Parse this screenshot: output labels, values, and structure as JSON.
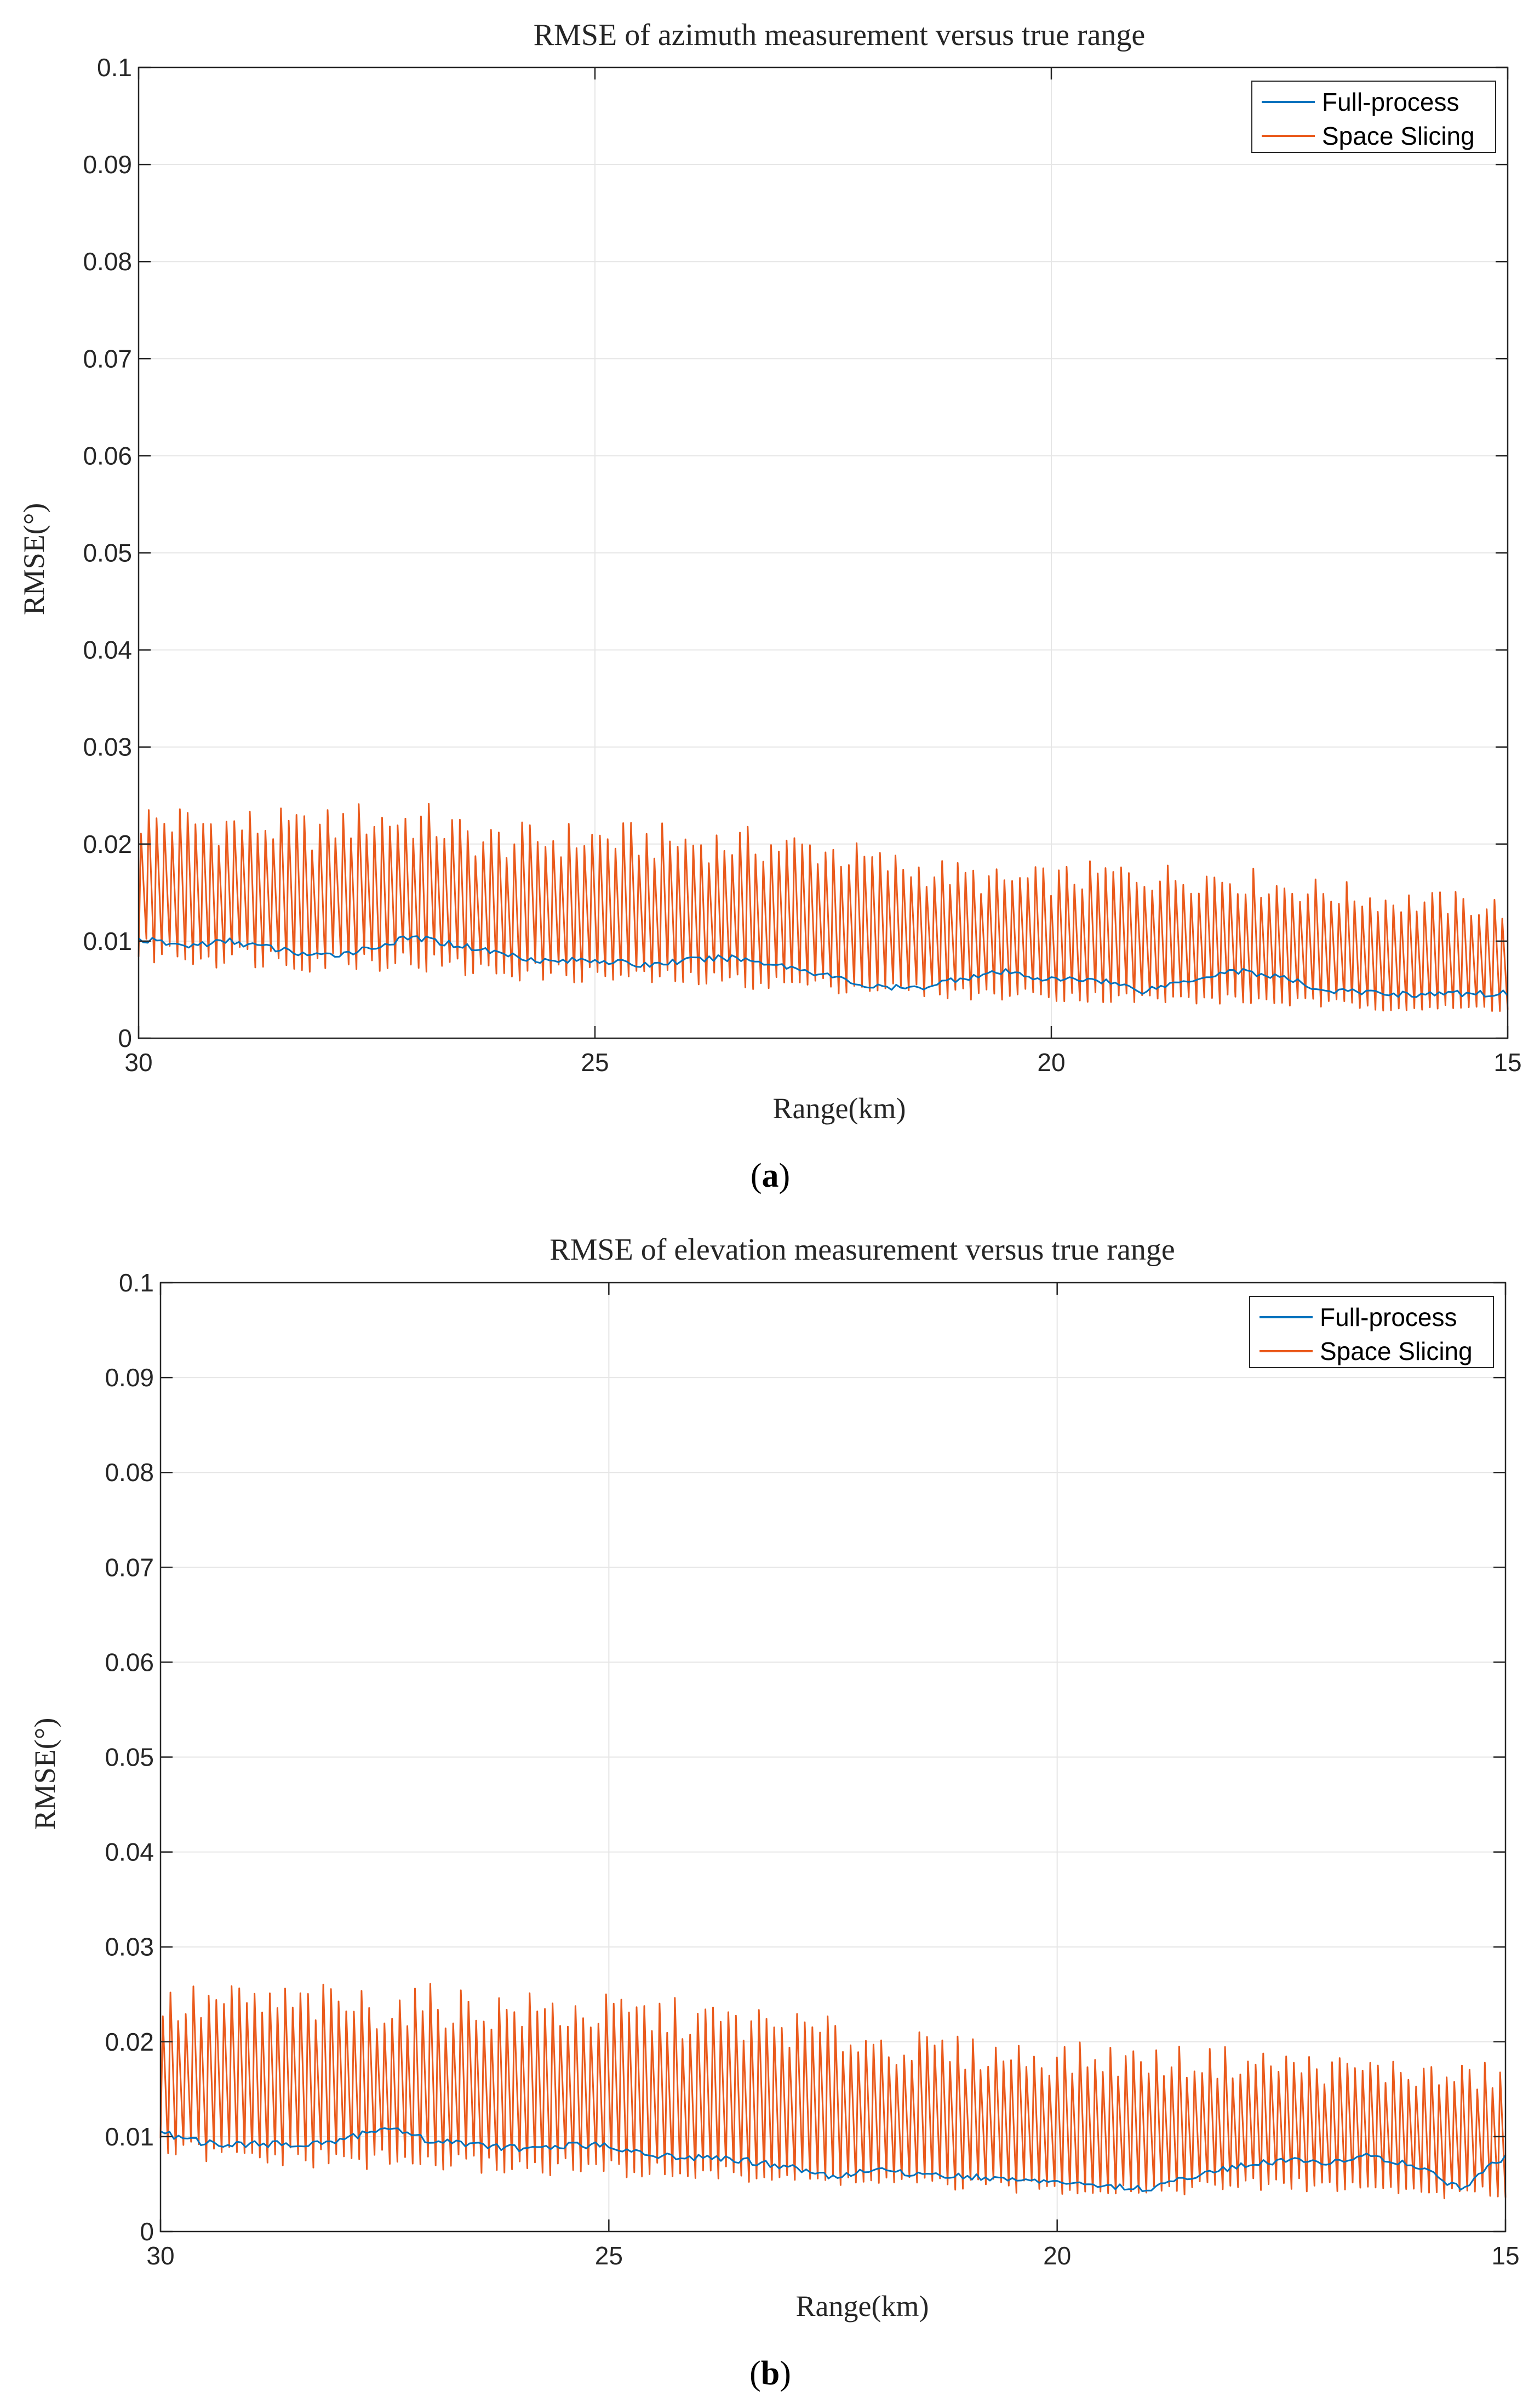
{
  "colors": {
    "full_process": "#0072bd",
    "space_slicing": "#ea5a1c",
    "grid": "#e6e6e6",
    "axis": "#262626"
  },
  "chart_data": [
    {
      "type": "line",
      "title": "RMSE of azimuth measurement versus true range",
      "xlabel": "Range(km)",
      "ylabel": "RMSE(°)",
      "xlim": [
        30,
        15
      ],
      "x_reversed": true,
      "ylim": [
        0,
        0.1
      ],
      "xticks": [
        "30",
        "25",
        "20",
        "15"
      ],
      "yticks": [
        "0",
        "0.01",
        "0.02",
        "0.03",
        "0.04",
        "0.05",
        "0.06",
        "0.07",
        "0.08",
        "0.09",
        "0.1"
      ],
      "grid": true,
      "legend": "top-right",
      "caption_letter": "a",
      "series": [
        {
          "name": "Full-process",
          "color": "#0072bd",
          "x": [
            30,
            29.5,
            29,
            28.5,
            28,
            27.5,
            27,
            26.5,
            26,
            25.5,
            25,
            24.5,
            24,
            23.5,
            23,
            22.5,
            22,
            21.5,
            21,
            20.5,
            20,
            19.5,
            19,
            18.5,
            18,
            17.5,
            17,
            16.5,
            16,
            15.5,
            15
          ],
          "values": [
            0.0102,
            0.0095,
            0.01,
            0.0092,
            0.0084,
            0.0092,
            0.0104,
            0.0096,
            0.0087,
            0.0079,
            0.0081,
            0.0075,
            0.008,
            0.0083,
            0.0076,
            0.0066,
            0.0053,
            0.0051,
            0.0062,
            0.0068,
            0.006,
            0.0061,
            0.0049,
            0.006,
            0.007,
            0.0063,
            0.0049,
            0.0047,
            0.0045,
            0.0046,
            0.0046
          ]
        },
        {
          "name": "Space Slicing",
          "color": "#ea5a1c",
          "x_start": 30,
          "x_end": 15,
          "cycles": 176,
          "peaks": [
            0.0225,
            0.022,
            0.0218,
            0.0213,
            0.0225,
            0.0222,
            0.0202,
            0.0203,
            0.0205,
            0.0202,
            0.02,
            0.0198,
            0.0193,
            0.0178,
            0.017,
            0.016,
            0.0162,
            0.0168,
            0.0165,
            0.0165,
            0.0155,
            0.0148,
            0.014,
            0.0138,
            0.0133
          ],
          "troughs": [
            0.009,
            0.0085,
            0.0085,
            0.008,
            0.0082,
            0.0078,
            0.007,
            0.0068,
            0.0065,
            0.0062,
            0.006,
            0.0058,
            0.0055,
            0.0052,
            0.0048,
            0.0045,
            0.0045,
            0.0042,
            0.004,
            0.004,
            0.0038,
            0.0035,
            0.0033,
            0.003,
            0.0032
          ]
        }
      ]
    },
    {
      "type": "line",
      "title": "RMSE of elevation measurement versus true range",
      "xlabel": "Range(km)",
      "ylabel": "RMSE(°)",
      "xlim": [
        30,
        15
      ],
      "x_reversed": true,
      "ylim": [
        0,
        0.1
      ],
      "xticks": [
        "30",
        "25",
        "20",
        "15"
      ],
      "yticks": [
        "0",
        "0.01",
        "0.02",
        "0.03",
        "0.04",
        "0.05",
        "0.06",
        "0.07",
        "0.08",
        "0.09",
        "0.1"
      ],
      "grid": true,
      "legend": "top-right",
      "caption_letter": "b",
      "series": [
        {
          "name": "Full-process",
          "color": "#0072bd",
          "x": [
            30,
            29.5,
            29,
            28.5,
            28,
            27.5,
            27,
            26.5,
            26,
            25.5,
            25,
            24.5,
            24,
            23.5,
            23,
            22.5,
            22,
            21.5,
            21,
            20.5,
            20,
            19.5,
            19,
            18.5,
            18,
            17.5,
            17,
            16.5,
            16,
            15.5,
            15
          ],
          "values": [
            0.0104,
            0.0093,
            0.0092,
            0.0092,
            0.0096,
            0.011,
            0.0096,
            0.0092,
            0.0087,
            0.009,
            0.0091,
            0.008,
            0.0078,
            0.0075,
            0.0068,
            0.0058,
            0.0065,
            0.006,
            0.0058,
            0.0055,
            0.0052,
            0.0048,
            0.0045,
            0.0058,
            0.0068,
            0.0075,
            0.0073,
            0.008,
            0.007,
            0.0045,
            0.008
          ]
        },
        {
          "name": "Space Slicing",
          "color": "#ea5a1c",
          "x_start": 30,
          "x_end": 15,
          "cycles": 176,
          "peaks": [
            0.0235,
            0.024,
            0.0238,
            0.0238,
            0.0235,
            0.0238,
            0.0232,
            0.023,
            0.0228,
            0.0225,
            0.022,
            0.0215,
            0.0205,
            0.0195,
            0.0188,
            0.0185,
            0.0182,
            0.018,
            0.0178,
            0.0178,
            0.0175,
            0.017,
            0.0168,
            0.016,
            0.0165
          ],
          "troughs": [
            0.0088,
            0.008,
            0.0078,
            0.0076,
            0.0075,
            0.0072,
            0.007,
            0.0068,
            0.0066,
            0.0063,
            0.006,
            0.0058,
            0.0055,
            0.0052,
            0.005,
            0.0048,
            0.0046,
            0.0045,
            0.0045,
            0.0048,
            0.005,
            0.0048,
            0.0045,
            0.004,
            0.0042
          ]
        }
      ]
    }
  ]
}
